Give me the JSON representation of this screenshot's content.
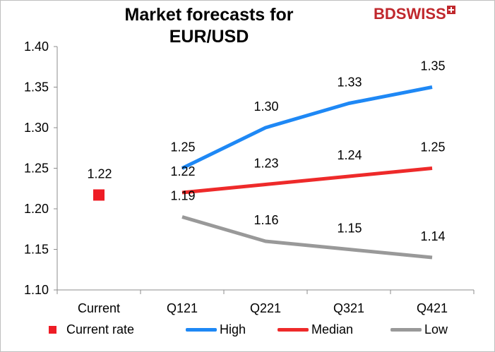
{
  "title": "Market forecasts for EUR/USD",
  "logo": {
    "text_bd": "BD",
    "text_swiss": "SWISS",
    "brand_color": "#c0282d"
  },
  "chart_data": {
    "type": "line",
    "title": "Market forecasts for EUR/USD",
    "categories": [
      "Current",
      "Q121",
      "Q221",
      "Q321",
      "Q421"
    ],
    "ylim": [
      1.1,
      1.4
    ],
    "yticks": [
      "1.10",
      "1.15",
      "1.20",
      "1.25",
      "1.30",
      "1.35",
      "1.40"
    ],
    "grid": false,
    "legend_position": "bottom",
    "series": [
      {
        "name": "Current rate",
        "marker": "square",
        "color": "#ee1c25",
        "values": [
          1.217,
          null,
          null,
          null,
          null
        ],
        "labels": [
          "1.22",
          "",
          "",
          "",
          ""
        ]
      },
      {
        "name": "High",
        "marker": "line",
        "color": "#1e88f5",
        "values": [
          null,
          1.25,
          1.3,
          1.33,
          1.35
        ],
        "labels": [
          "",
          "1.25",
          "1.30",
          "1.33",
          "1.35"
        ]
      },
      {
        "name": "Median",
        "marker": "line",
        "color": "#ee2a2a",
        "values": [
          null,
          1.22,
          1.23,
          1.24,
          1.25
        ],
        "labels": [
          "",
          "1.22",
          "1.23",
          "1.24",
          "1.25"
        ]
      },
      {
        "name": "Low",
        "marker": "line",
        "color": "#999999",
        "values": [
          null,
          1.19,
          1.16,
          1.15,
          1.14
        ],
        "labels": [
          "",
          "1.19",
          "1.16",
          "1.15",
          "1.14"
        ]
      }
    ]
  }
}
